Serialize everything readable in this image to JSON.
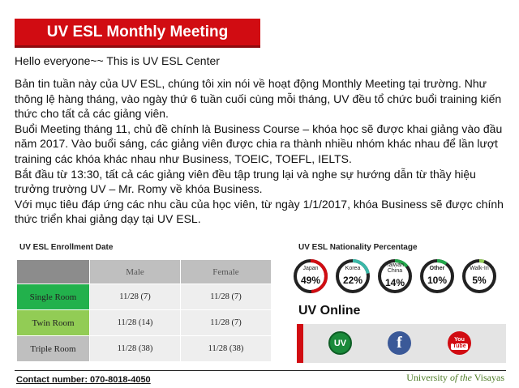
{
  "header": {
    "title": "UV ESL Monthly Meeting",
    "accent_color": "#d10c12"
  },
  "greeting": "Hello everyone~~ This is UV ESL Center",
  "paragraphs": [
    "Bản tin tuần này của UV ESL, chúng tôi xin nói về hoạt động Monthly Meeting tại trường. Như thông lệ hàng tháng, vào ngày thứ 6 tuần cuối cùng mỗi tháng, UV đều tổ chức buổi training kiến thức cho tất cả các giảng viên.",
    "Buổi Meeting tháng 11, chủ đề chính là Business Course – khóa học sẽ được khai giảng vào đầu năm 2017. Vào buổi sáng, các giảng viên được chia ra thành nhiều nhóm khác nhau để lần lượt training các khóa khác nhau như Business, TOEIC, TOEFL, IELTS.",
    "Bắt đầu từ 13:30, tất cả các giảng viên đều tập trung lại và nghe sự hướng dẫn từ thầy hiệu trưởng trường UV – Mr. Romy về khóa Business.",
    "Với mục tiêu đáp ứng các nhu cầu của học viên, từ ngày 1/1/2017, khóa Business sẽ được chính thức triển khai giảng dạy tại UV ESL."
  ],
  "enrollment": {
    "title": "UV ESL Enrollment Date",
    "columns": [
      "",
      "Male",
      "Female"
    ],
    "rows": [
      {
        "label": "Single Room",
        "male": "11/28 (7)",
        "female": "11/28 (7)",
        "color": "#22b14c"
      },
      {
        "label": "Twin Room",
        "male": "11/28 (14)",
        "female": "11/28 (7)",
        "color": "#92cc55"
      },
      {
        "label": "Triple Room",
        "male": "11/28 (38)",
        "female": "11/28 (38)",
        "color": "#bfbfbf"
      }
    ]
  },
  "nationality": {
    "title": "UV ESL Nationality Percentage",
    "items": [
      {
        "label": "Japan",
        "pct": "49%",
        "value": 49,
        "color": "#d10c12"
      },
      {
        "label": "Korea",
        "pct": "22%",
        "value": 22,
        "color": "#3ab8a8"
      },
      {
        "label": "Taiwan\nChina",
        "pct": "14%",
        "value": 14,
        "color": "#22a64a"
      },
      {
        "label": "Other",
        "pct": "10%",
        "value": 10,
        "color": "#22a64a"
      },
      {
        "label": "Walk-In",
        "pct": "5%",
        "value": 5,
        "color": "#92cc55"
      }
    ]
  },
  "online": {
    "title": "UV Online",
    "icons": [
      "uv-logo-icon",
      "facebook-icon",
      "youtube-icon"
    ],
    "uv_text": "UV",
    "fb_text": "f",
    "yt_text_top": "You",
    "yt_text_bottom": "Tube"
  },
  "footer": {
    "contact": "Contact number: 070-8018-4050",
    "university_prefix": "University ",
    "university_italic": "of the",
    "university_suffix": " Visayas"
  }
}
